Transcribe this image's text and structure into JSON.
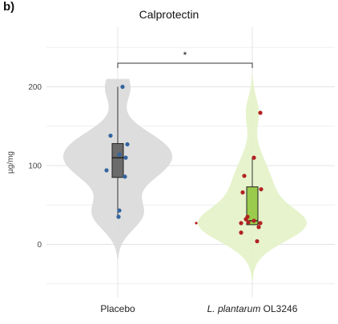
{
  "panel_label": "b)",
  "chart_data": {
    "type": "violin_box_scatter",
    "title": "Calprotectin",
    "xlabel": "",
    "ylabel": "µg/mg",
    "ylim": [
      -55,
      245
    ],
    "yticks": [
      0,
      100,
      200
    ],
    "grid": true,
    "significance": "*",
    "groups": [
      {
        "label": "Placebo",
        "label_italic": "",
        "label_rest": "",
        "violin_color": "#d9d9d9",
        "box_color": "#6b6b6b",
        "point_color": "#3465a0",
        "violin_range": [
          -18,
          210
        ],
        "box": {
          "min": 35,
          "q1": 85,
          "median": 110,
          "q3": 128,
          "max": 200
        },
        "points": [
          200,
          138,
          127,
          114,
          110,
          94,
          86,
          43,
          35
        ]
      },
      {
        "label": "",
        "label_italic": "L. plantarum",
        "label_rest": " OL3246",
        "violin_color": "#e3f2c6",
        "box_color": "#9bcb4c",
        "point_color": "#b22222",
        "violin_range": [
          -45,
          215
        ],
        "box": {
          "min": 25,
          "q1": 25,
          "median": 30,
          "q3": 73,
          "max": 110
        },
        "points": [
          167,
          110,
          87,
          70,
          66,
          35,
          32,
          30,
          28,
          27,
          27,
          22,
          15,
          4
        ]
      }
    ]
  }
}
